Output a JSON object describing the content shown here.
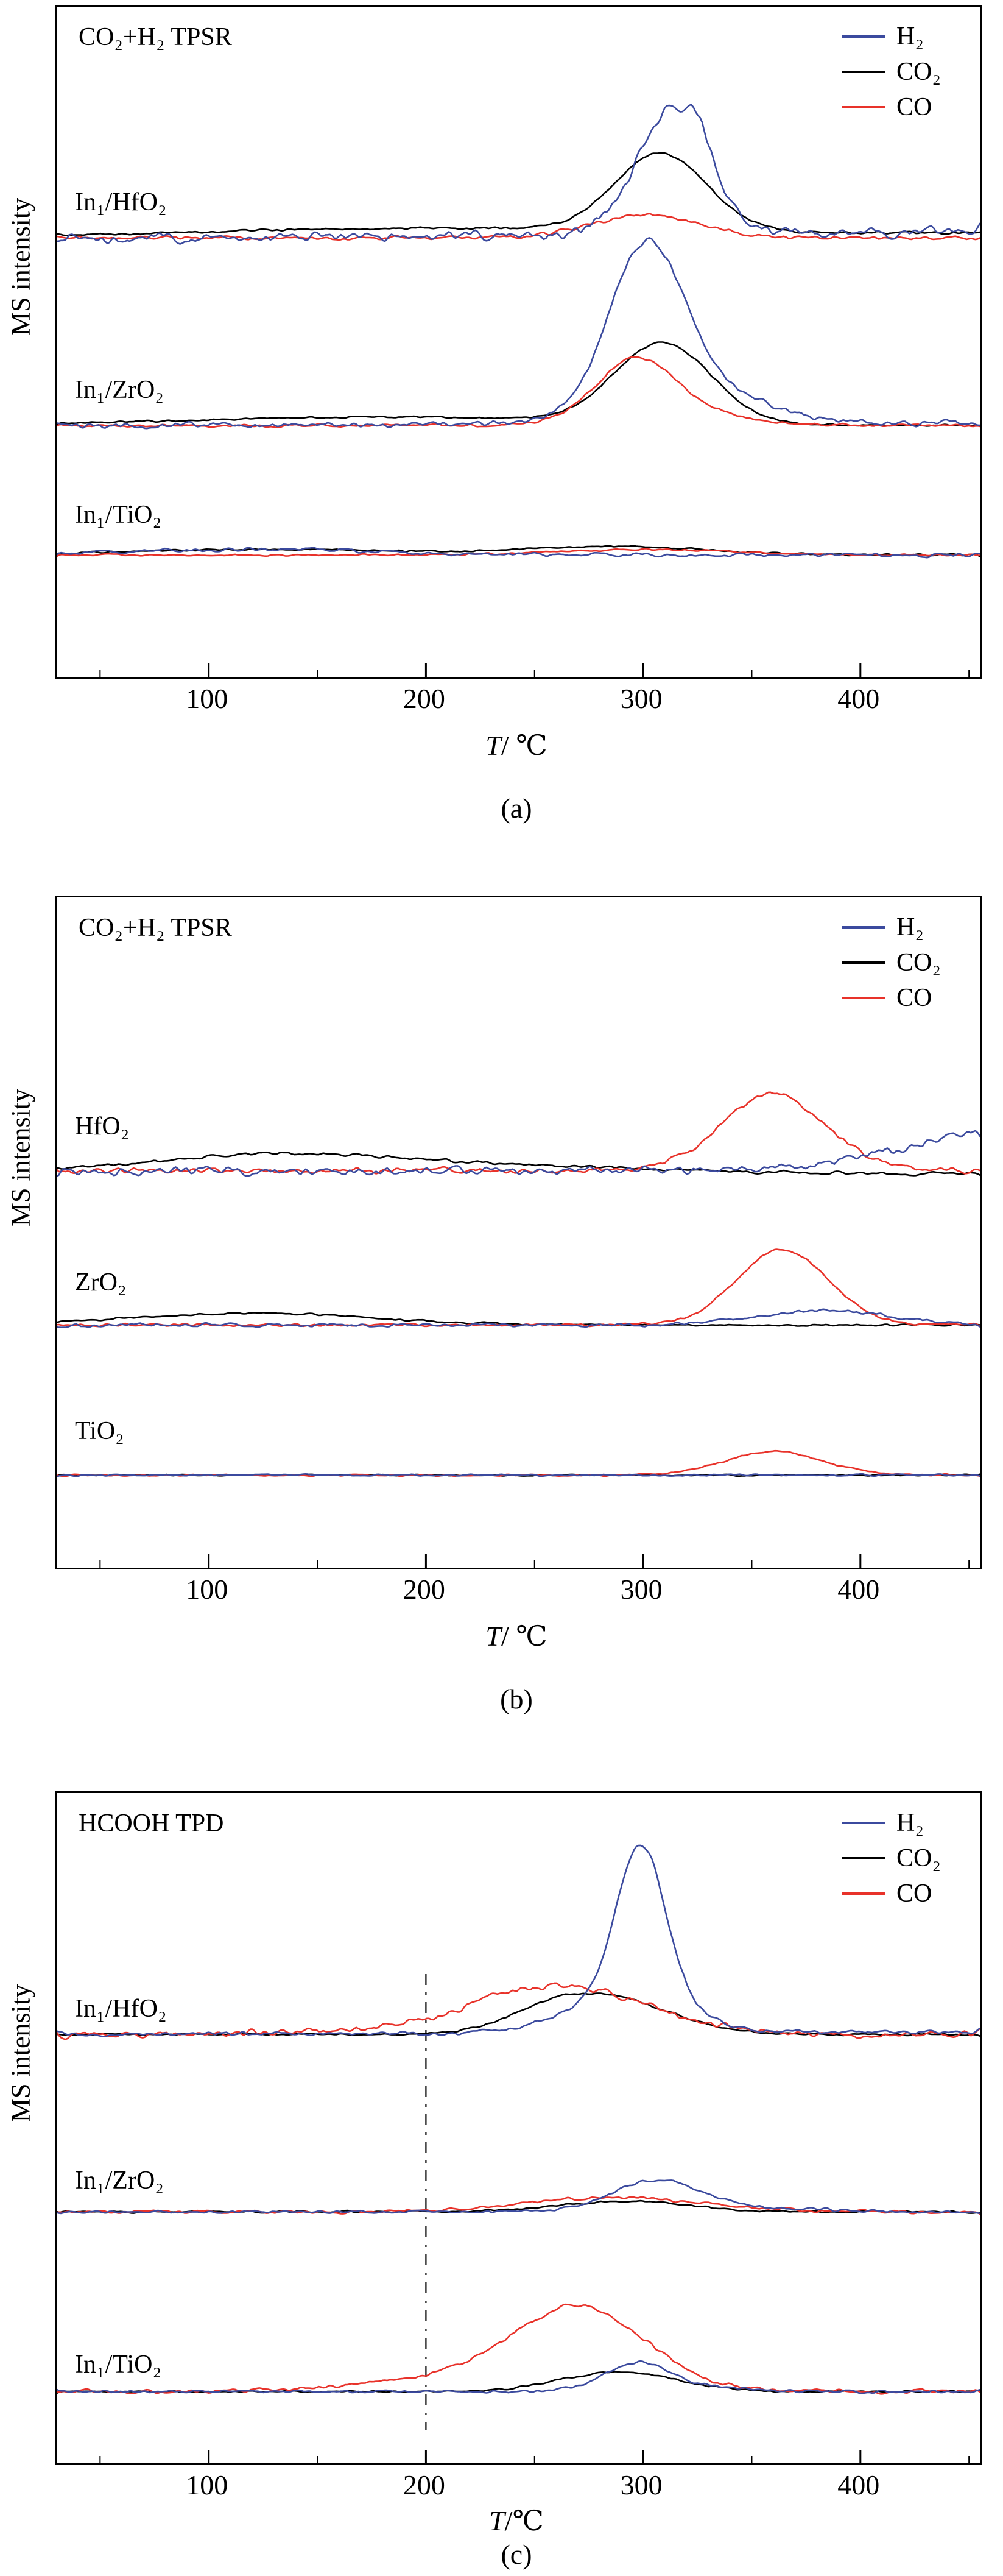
{
  "chart_data": [
    {
      "type": "line",
      "panel_label": "(a)",
      "title": "CO₂+H₂ TPSR",
      "ylabel": "MS intensity",
      "xlabel_italic": "T",
      "xlabel_rest": "/ ℃",
      "xlim": [
        30,
        455
      ],
      "xticks": [
        100,
        200,
        300,
        400
      ],
      "minor_tick_step": 50,
      "grid": false,
      "legend_position": "top-right",
      "legend": [
        {
          "label": "H₂",
          "color": "#3b4a9e"
        },
        {
          "label": "CO₂",
          "color": "#000000"
        },
        {
          "label": "CO",
          "color": "#e8322a"
        }
      ],
      "groups": [
        {
          "name": "In₁/HfO₂",
          "baseline": 0.345,
          "label_y": 0.295,
          "series": [
            {
              "key": "h2",
              "gas": "H₂",
              "color": "#3b4a9e",
              "noise": 0.011,
              "slope": 2e-05,
              "peaks": [
                {
                  "c": 313,
                  "w": 16,
                  "h": 0.185
                },
                {
                  "c": 327,
                  "w": 7,
                  "h": 0.035
                }
              ]
            },
            {
              "key": "co2",
              "gas": "CO₂",
              "color": "#000000",
              "noise": 0.0025,
              "slope": 1.5e-05,
              "peaks": [
                {
                  "c": 308,
                  "w": 21,
                  "h": 0.115
                },
                {
                  "c": 200,
                  "w": 110,
                  "h": 0.012
                }
              ]
            },
            {
              "key": "co",
              "gas": "CO",
              "color": "#e8322a",
              "noise": 0.004,
              "slope": 0,
              "peaks": [
                {
                  "c": 301,
                  "w": 24,
                  "h": 0.035
                }
              ]
            }
          ]
        },
        {
          "name": "In₁/ZrO₂",
          "baseline": 0.625,
          "label_y": 0.575,
          "series": [
            {
              "key": "h2",
              "gas": "H₂",
              "color": "#3b4a9e",
              "noise": 0.006,
              "slope": 1e-05,
              "peaks": [
                {
                  "c": 301,
                  "w": 17,
                  "h": 0.23
                },
                {
                  "c": 322,
                  "w": 30,
                  "h": 0.055
                }
              ]
            },
            {
              "key": "co2",
              "gas": "CO₂",
              "color": "#000000",
              "noise": 0.002,
              "slope": 0,
              "peaks": [
                {
                  "c": 309,
                  "w": 22,
                  "h": 0.12
                },
                {
                  "c": 180,
                  "w": 90,
                  "h": 0.013
                }
              ]
            },
            {
              "key": "co",
              "gas": "CO",
              "color": "#e8322a",
              "noise": 0.003,
              "slope": 0,
              "peaks": [
                {
                  "c": 296,
                  "w": 18,
                  "h": 0.085
                },
                {
                  "c": 315,
                  "w": 28,
                  "h": 0.02
                }
              ]
            }
          ]
        },
        {
          "name": "In₁/TiO₂",
          "baseline": 0.818,
          "label_y": 0.762,
          "series": [
            {
              "key": "h2",
              "gas": "H₂",
              "color": "#3b4a9e",
              "noise": 0.004,
              "slope": 0,
              "peaks": [
                {
                  "c": 120,
                  "w": 60,
                  "h": 0.008
                }
              ]
            },
            {
              "key": "co2",
              "gas": "CO₂",
              "color": "#000000",
              "noise": 0.002,
              "slope": 0,
              "peaks": [
                {
                  "c": 290,
                  "w": 40,
                  "h": 0.012
                },
                {
                  "c": 130,
                  "w": 70,
                  "h": 0.008
                }
              ]
            },
            {
              "key": "co",
              "gas": "CO",
              "color": "#e8322a",
              "noise": 0.002,
              "slope": 0,
              "peaks": [
                {
                  "c": 300,
                  "w": 40,
                  "h": 0.008
                }
              ]
            }
          ]
        }
      ]
    },
    {
      "type": "line",
      "panel_label": "(b)",
      "title": "CO₂+H₂ TPSR",
      "ylabel": "MS intensity",
      "xlabel_italic": "T",
      "xlabel_rest": "/ ℃",
      "xlim": [
        30,
        455
      ],
      "xticks": [
        100,
        200,
        300,
        400
      ],
      "minor_tick_step": 50,
      "grid": false,
      "legend_position": "top-right",
      "legend": [
        {
          "label": "H₂",
          "color": "#3b4a9e"
        },
        {
          "label": "CO₂",
          "color": "#000000"
        },
        {
          "label": "CO",
          "color": "#e8322a"
        }
      ],
      "groups": [
        {
          "name": "HfO₂",
          "baseline": 0.408,
          "label_y": 0.345,
          "series": [
            {
              "key": "h2",
              "gas": "H₂",
              "color": "#3b4a9e",
              "noise": 0.009,
              "slope": 0,
              "peaks": [
                {
                  "c": 480,
                  "w": 50,
                  "h": 0.07
                }
              ]
            },
            {
              "key": "co2",
              "gas": "CO₂",
              "color": "#000000",
              "noise": 0.003,
              "slope": -1e-05,
              "peaks": [
                {
                  "c": 135,
                  "w": 55,
                  "h": 0.026
                },
                {
                  "c": 250,
                  "w": 60,
                  "h": 0.008
                }
              ]
            },
            {
              "key": "co",
              "gas": "CO",
              "color": "#e8322a",
              "noise": 0.006,
              "slope": 0,
              "peaks": [
                {
                  "c": 360,
                  "w": 24,
                  "h": 0.115
                }
              ]
            }
          ]
        },
        {
          "name": "ZrO₂",
          "baseline": 0.638,
          "label_y": 0.578,
          "series": [
            {
              "key": "h2",
              "gas": "H₂",
              "color": "#3b4a9e",
              "noise": 0.004,
              "slope": 0,
              "peaks": [
                {
                  "c": 385,
                  "w": 30,
                  "h": 0.022
                }
              ]
            },
            {
              "key": "co2",
              "gas": "CO₂",
              "color": "#000000",
              "noise": 0.002,
              "slope": 0,
              "peaks": [
                {
                  "c": 120,
                  "w": 55,
                  "h": 0.018
                }
              ]
            },
            {
              "key": "co",
              "gas": "CO",
              "color": "#e8322a",
              "noise": 0.003,
              "slope": 0,
              "peaks": [
                {
                  "c": 364,
                  "w": 21,
                  "h": 0.112
                }
              ]
            }
          ]
        },
        {
          "name": "TiO₂",
          "baseline": 0.862,
          "label_y": 0.8,
          "series": [
            {
              "key": "h2",
              "gas": "H₂",
              "color": "#3b4a9e",
              "noise": 0.002,
              "slope": 0,
              "peaks": []
            },
            {
              "key": "co2",
              "gas": "CO₂",
              "color": "#000000",
              "noise": 0.0015,
              "slope": 0,
              "peaks": []
            },
            {
              "key": "co",
              "gas": "CO",
              "color": "#e8322a",
              "noise": 0.002,
              "slope": 0,
              "peaks": [
                {
                  "c": 360,
                  "w": 22,
                  "h": 0.036
                }
              ]
            }
          ]
        }
      ]
    },
    {
      "type": "line",
      "panel_label": "(c)",
      "title": "HCOOH TPD",
      "ylabel": "MS intensity",
      "xlabel_italic": "T",
      "xlabel_rest": "/℃",
      "xlim": [
        30,
        455
      ],
      "xticks": [
        100,
        200,
        300,
        400
      ],
      "minor_tick_step": 50,
      "grid": false,
      "legend_position": "top-right",
      "legend": [
        {
          "label": "H₂",
          "color": "#3b4a9e"
        },
        {
          "label": "CO₂",
          "color": "#000000"
        },
        {
          "label": "CO",
          "color": "#e8322a"
        }
      ],
      "annotations": [
        {
          "type": "vline",
          "x": 200,
          "y0": 0.27,
          "y1": 0.95,
          "style": "dash-dot"
        }
      ],
      "groups": [
        {
          "name": "In₁/HfO₂",
          "baseline": 0.36,
          "label_y": 0.325,
          "series": [
            {
              "key": "h2",
              "gas": "H₂",
              "color": "#3b4a9e",
              "noise": 0.004,
              "slope": 1e-05,
              "peaks": [
                {
                  "c": 299,
                  "w": 11,
                  "h": 0.225
                },
                {
                  "c": 287,
                  "w": 25,
                  "h": 0.045
                },
                {
                  "c": 310,
                  "w": 20,
                  "h": 0.02
                }
              ]
            },
            {
              "key": "co2",
              "gas": "CO₂",
              "color": "#000000",
              "noise": 0.002,
              "slope": 0,
              "peaks": [
                {
                  "c": 280,
                  "w": 30,
                  "h": 0.058
                },
                {
                  "c": 255,
                  "w": 15,
                  "h": 0.01
                }
              ]
            },
            {
              "key": "co",
              "gas": "CO",
              "color": "#e8322a",
              "noise": 0.007,
              "slope": 0,
              "peaks": [
                {
                  "c": 263,
                  "w": 38,
                  "h": 0.062
                },
                {
                  "c": 240,
                  "w": 60,
                  "h": 0.012
                }
              ]
            }
          ]
        },
        {
          "name": "In₁/ZrO₂",
          "baseline": 0.625,
          "label_y": 0.582,
          "series": [
            {
              "key": "h2",
              "gas": "H₂",
              "color": "#3b4a9e",
              "noise": 0.003,
              "slope": 0,
              "peaks": [
                {
                  "c": 306,
                  "w": 19,
                  "h": 0.042
                },
                {
                  "c": 330,
                  "w": 40,
                  "h": 0.008
                }
              ]
            },
            {
              "key": "co2",
              "gas": "CO₂",
              "color": "#000000",
              "noise": 0.002,
              "slope": 0,
              "peaks": [
                {
                  "c": 292,
                  "w": 30,
                  "h": 0.016
                }
              ]
            },
            {
              "key": "co",
              "gas": "CO",
              "color": "#e8322a",
              "noise": 0.003,
              "slope": 0,
              "peaks": [
                {
                  "c": 287,
                  "w": 40,
                  "h": 0.022
                }
              ]
            }
          ]
        },
        {
          "name": "In₁/TiO₂",
          "baseline": 0.893,
          "label_y": 0.856,
          "series": [
            {
              "key": "h2",
              "gas": "H₂",
              "color": "#3b4a9e",
              "noise": 0.003,
              "slope": 0,
              "peaks": [
                {
                  "c": 297,
                  "w": 14,
                  "h": 0.035
                },
                {
                  "c": 310,
                  "w": 25,
                  "h": 0.01
                }
              ]
            },
            {
              "key": "co2",
              "gas": "CO₂",
              "color": "#000000",
              "noise": 0.002,
              "slope": 0,
              "peaks": [
                {
                  "c": 289,
                  "w": 26,
                  "h": 0.03
                }
              ]
            },
            {
              "key": "co",
              "gas": "CO",
              "color": "#e8322a",
              "noise": 0.004,
              "slope": 0,
              "peaks": [
                {
                  "c": 271,
                  "w": 30,
                  "h": 0.115
                },
                {
                  "c": 225,
                  "w": 50,
                  "h": 0.02
                }
              ]
            }
          ]
        }
      ]
    }
  ]
}
